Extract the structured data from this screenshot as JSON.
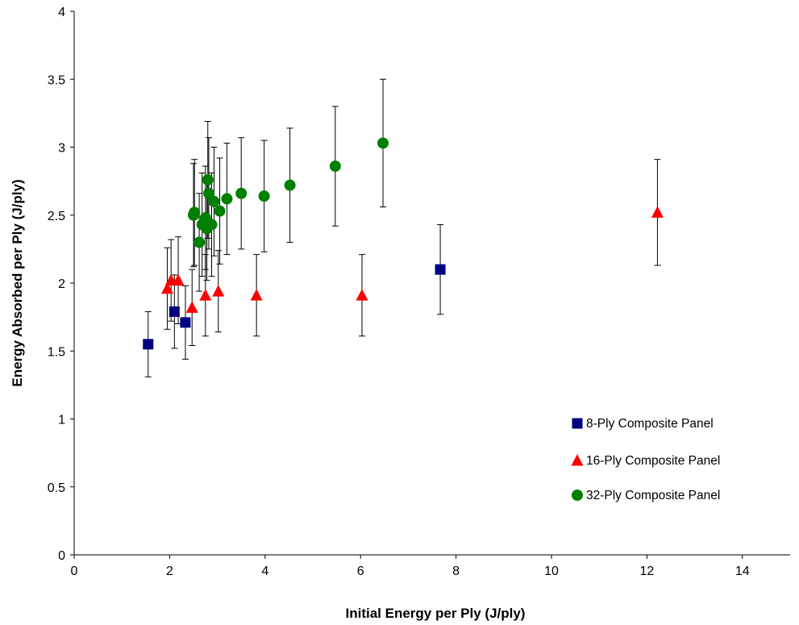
{
  "chart_data": {
    "type": "scatter",
    "title": "",
    "xlabel": "Initial Energy per Ply (J/ply)",
    "ylabel": "Energy Absorbed per Ply (J/ply)",
    "xlim": [
      0,
      15
    ],
    "ylim": [
      0,
      4
    ],
    "xticks": [
      "0",
      "2",
      "4",
      "6",
      "8",
      "10",
      "12",
      "14"
    ],
    "yticks": [
      "0",
      "0.5",
      "1",
      "1.5",
      "2",
      "2.5",
      "3",
      "3.5",
      "4"
    ],
    "grid": false,
    "legend_position": "lower-right",
    "series": [
      {
        "name": "8-Ply Composite Panel",
        "marker": "square",
        "color": "#000080",
        "points": [
          {
            "x": 1.55,
            "y": 1.55,
            "err": 0.24
          },
          {
            "x": 2.1,
            "y": 1.79,
            "err": 0.27
          },
          {
            "x": 2.33,
            "y": 1.71,
            "err": 0.27
          },
          {
            "x": 7.67,
            "y": 2.1,
            "err": 0.33
          }
        ]
      },
      {
        "name": "16-Ply Composite Panel",
        "marker": "triangle",
        "color": "#ff0000",
        "points": [
          {
            "x": 1.95,
            "y": 1.96,
            "err": 0.3
          },
          {
            "x": 2.03,
            "y": 2.02,
            "err": 0.3
          },
          {
            "x": 2.18,
            "y": 2.02,
            "err": 0.32
          },
          {
            "x": 2.47,
            "y": 1.82,
            "err": 0.28
          },
          {
            "x": 2.75,
            "y": 1.91,
            "err": 0.3
          },
          {
            "x": 3.02,
            "y": 1.94,
            "err": 0.3
          },
          {
            "x": 3.82,
            "y": 1.91,
            "err": 0.3
          },
          {
            "x": 6.03,
            "y": 1.91,
            "err": 0.3
          },
          {
            "x": 12.22,
            "y": 2.52,
            "err": 0.39
          }
        ]
      },
      {
        "name": "32-Ply Composite Panel",
        "marker": "circle",
        "color": "#008000",
        "points": [
          {
            "x": 2.5,
            "y": 2.5,
            "err": 0.38
          },
          {
            "x": 2.52,
            "y": 2.52,
            "err": 0.39
          },
          {
            "x": 2.62,
            "y": 2.3,
            "err": 0.36
          },
          {
            "x": 2.68,
            "y": 2.43,
            "err": 0.38
          },
          {
            "x": 2.75,
            "y": 2.48,
            "err": 0.38
          },
          {
            "x": 2.78,
            "y": 2.4,
            "err": 0.38
          },
          {
            "x": 2.8,
            "y": 2.76,
            "err": 0.43
          },
          {
            "x": 2.82,
            "y": 2.66,
            "err": 0.41
          },
          {
            "x": 2.88,
            "y": 2.43,
            "err": 0.38
          },
          {
            "x": 2.93,
            "y": 2.6,
            "err": 0.4
          },
          {
            "x": 3.05,
            "y": 2.53,
            "err": 0.39
          },
          {
            "x": 3.2,
            "y": 2.62,
            "err": 0.41
          },
          {
            "x": 3.5,
            "y": 2.66,
            "err": 0.41
          },
          {
            "x": 3.98,
            "y": 2.64,
            "err": 0.41
          },
          {
            "x": 4.52,
            "y": 2.72,
            "err": 0.42
          },
          {
            "x": 5.47,
            "y": 2.86,
            "err": 0.44
          },
          {
            "x": 6.47,
            "y": 3.03,
            "err": 0.47
          }
        ]
      }
    ]
  }
}
